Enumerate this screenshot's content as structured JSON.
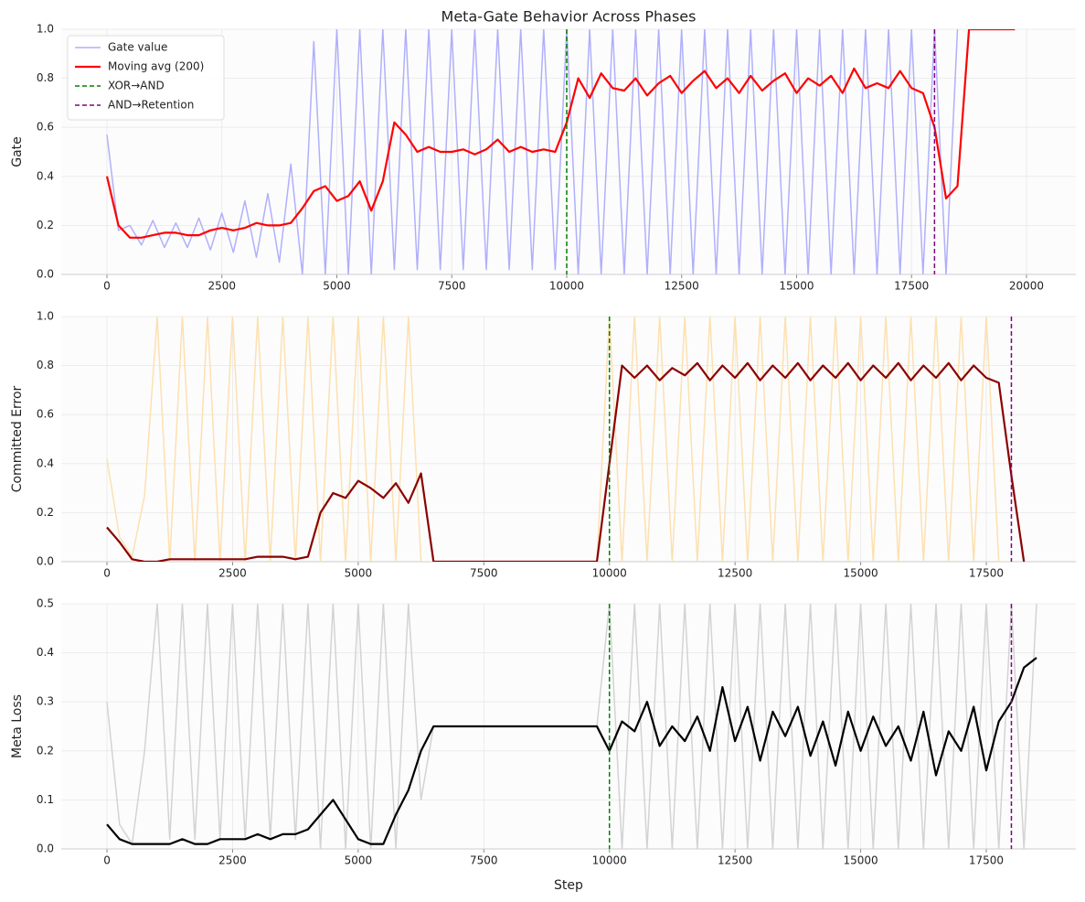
{
  "chart_data": [
    {
      "type": "line",
      "title": "Meta-Gate Behavior Across Phases",
      "ylabel": "Gate",
      "x": [
        0,
        250,
        500,
        750,
        1000,
        1250,
        1500,
        1750,
        2000,
        2250,
        2500,
        2750,
        3000,
        3250,
        3500,
        3750,
        4000,
        4250,
        4500,
        4750,
        5000,
        5250,
        5500,
        5750,
        6000,
        6250,
        6500,
        6750,
        7000,
        7250,
        7500,
        7750,
        8000,
        8250,
        8500,
        8750,
        9000,
        9250,
        9500,
        9750,
        10000,
        10250,
        10500,
        10750,
        11000,
        11250,
        11500,
        11750,
        12000,
        12250,
        12500,
        12750,
        13000,
        13250,
        13500,
        13750,
        14000,
        14250,
        14500,
        14750,
        15000,
        15250,
        15500,
        15750,
        16000,
        16250,
        16500,
        16750,
        17000,
        17250,
        17500,
        17750,
        18000,
        18250,
        18500,
        18750,
        19000,
        19250,
        19500,
        19750
      ],
      "series": [
        {
          "name": "Gate value",
          "color": "#b0b0fc",
          "values": [
            0.57,
            0.18,
            0.2,
            0.12,
            0.22,
            0.11,
            0.21,
            0.11,
            0.23,
            0.1,
            0.25,
            0.09,
            0.3,
            0.07,
            0.33,
            0.05,
            0.45,
            0,
            0.95,
            0,
            1,
            0,
            1,
            0,
            1,
            0.02,
            1,
            0.02,
            1,
            0.02,
            1,
            0.02,
            1,
            0.02,
            1,
            0.02,
            1,
            0.02,
            1,
            0.02,
            1,
            0,
            1,
            0,
            1,
            0,
            1,
            0,
            1,
            0,
            1,
            0,
            1,
            0,
            1,
            0,
            1,
            0,
            1,
            0,
            1,
            0,
            1,
            0,
            1,
            0,
            1,
            0,
            1,
            0,
            1,
            0,
            1,
            0,
            1,
            null,
            null,
            null,
            null,
            null
          ]
        },
        {
          "name": "Moving avg (200)",
          "color": "#ff0000",
          "values": [
            0.4,
            0.2,
            0.15,
            0.15,
            0.16,
            0.17,
            0.17,
            0.16,
            0.16,
            0.18,
            0.19,
            0.18,
            0.19,
            0.21,
            0.2,
            0.2,
            0.21,
            0.27,
            0.34,
            0.36,
            0.3,
            0.32,
            0.38,
            0.26,
            0.38,
            0.62,
            0.57,
            0.5,
            0.52,
            0.5,
            0.5,
            0.51,
            0.49,
            0.51,
            0.55,
            0.5,
            0.52,
            0.5,
            0.51,
            0.5,
            0.62,
            0.8,
            0.72,
            0.82,
            0.76,
            0.75,
            0.8,
            0.73,
            0.78,
            0.81,
            0.74,
            0.79,
            0.83,
            0.76,
            0.8,
            0.74,
            0.81,
            0.75,
            0.79,
            0.82,
            0.74,
            0.8,
            0.77,
            0.81,
            0.74,
            0.84,
            0.76,
            0.78,
            0.76,
            0.83,
            0.76,
            0.74,
            0.6,
            0.31,
            0.36,
            1,
            1,
            1,
            1,
            1
          ]
        }
      ],
      "vlines": [
        {
          "name": "XOR→AND",
          "x": 10000,
          "color": "#008000"
        },
        {
          "name": "AND→Retention",
          "x": 18000,
          "color": "#800080"
        }
      ],
      "legend": "upper left",
      "xlim": [
        -994,
        21074
      ],
      "xticks": [
        0,
        2500,
        5000,
        7500,
        10000,
        12500,
        15000,
        17500,
        20000
      ],
      "ylim": [
        0,
        1
      ],
      "yticks": [
        {
          "value": 0,
          "label": "0.0"
        },
        {
          "value": 0.2,
          "label": "0.2"
        },
        {
          "value": 0.4,
          "label": "0.4"
        },
        {
          "value": 0.6,
          "label": "0.6"
        },
        {
          "value": 0.8,
          "label": "0.8"
        },
        {
          "value": 1,
          "label": "1.0"
        }
      ],
      "grid": true
    },
    {
      "type": "line",
      "ylabel": "Committed Error",
      "x": [
        0,
        250,
        500,
        750,
        1000,
        1250,
        1500,
        1750,
        2000,
        2250,
        2500,
        2750,
        3000,
        3250,
        3500,
        3750,
        4000,
        4250,
        4500,
        4750,
        5000,
        5250,
        5500,
        5750,
        6000,
        6250,
        6500,
        6750,
        7000,
        7250,
        7500,
        7750,
        8000,
        8250,
        8500,
        8750,
        9000,
        9250,
        9500,
        9750,
        10000,
        10250,
        10500,
        10750,
        11000,
        11250,
        11500,
        11750,
        12000,
        12250,
        12500,
        12750,
        13000,
        13250,
        13500,
        13750,
        14000,
        14250,
        14500,
        14750,
        15000,
        15250,
        15500,
        15750,
        16000,
        16250,
        16500,
        16750,
        17000,
        17250,
        17500,
        17750,
        18000,
        18250,
        18500
      ],
      "series": [
        {
          "color": "#fde0b0",
          "values": [
            0.42,
            0.1,
            0.02,
            0.27,
            1,
            0,
            1,
            0,
            1,
            0,
            1,
            0,
            1,
            0,
            1,
            0,
            1,
            0,
            1,
            0,
            1,
            0,
            1,
            0,
            1,
            0,
            0,
            0,
            0,
            0,
            0,
            0,
            0,
            0,
            0,
            0,
            0,
            0,
            0,
            0,
            1,
            0,
            1,
            0,
            1,
            0,
            1,
            0,
            1,
            0,
            1,
            0,
            1,
            0,
            1,
            0,
            1,
            0,
            1,
            0,
            1,
            0,
            1,
            0,
            1,
            0,
            1,
            0,
            1,
            0,
            1,
            0,
            0,
            null,
            null
          ]
        },
        {
          "color": "#8b0000",
          "values": [
            0.14,
            0.08,
            0.01,
            0,
            0,
            0.01,
            0.01,
            0.01,
            0.01,
            0.01,
            0.01,
            0.01,
            0.02,
            0.02,
            0.02,
            0.01,
            0.02,
            0.2,
            0.28,
            0.26,
            0.33,
            0.3,
            0.26,
            0.32,
            0.24,
            0.36,
            0,
            0,
            0,
            0,
            0,
            0,
            0,
            0,
            0,
            0,
            0,
            0,
            0,
            0,
            0.4,
            0.8,
            0.75,
            0.8,
            0.74,
            0.79,
            0.76,
            0.81,
            0.74,
            0.8,
            0.75,
            0.81,
            0.74,
            0.8,
            0.75,
            0.81,
            0.74,
            0.8,
            0.75,
            0.81,
            0.74,
            0.8,
            0.75,
            0.81,
            0.74,
            0.8,
            0.75,
            0.81,
            0.74,
            0.8,
            0.75,
            0.73,
            0.35,
            0,
            null
          ]
        }
      ],
      "vlines": [
        {
          "x": 10000,
          "color": "#008000"
        },
        {
          "x": 18000,
          "color": "#800080"
        }
      ],
      "xlim": [
        -910,
        19283
      ],
      "xticks": [
        0,
        2500,
        5000,
        7500,
        10000,
        12500,
        15000,
        17500
      ],
      "ylim": [
        0,
        1
      ],
      "yticks": [
        {
          "value": 0,
          "label": "0.0"
        },
        {
          "value": 0.2,
          "label": "0.2"
        },
        {
          "value": 0.4,
          "label": "0.4"
        },
        {
          "value": 0.6,
          "label": "0.6"
        },
        {
          "value": 0.8,
          "label": "0.8"
        },
        {
          "value": 1,
          "label": "1.0"
        }
      ],
      "grid": true
    },
    {
      "type": "line",
      "ylabel": "Meta Loss",
      "xlabel": "Step",
      "x": [
        0,
        250,
        500,
        750,
        1000,
        1250,
        1500,
        1750,
        2000,
        2250,
        2500,
        2750,
        3000,
        3250,
        3500,
        3750,
        4000,
        4250,
        4500,
        4750,
        5000,
        5250,
        5500,
        5750,
        6000,
        6250,
        6500,
        6750,
        7000,
        7250,
        7500,
        7750,
        8000,
        8250,
        8500,
        8750,
        9000,
        9250,
        9500,
        9750,
        10000,
        10250,
        10500,
        10750,
        11000,
        11250,
        11500,
        11750,
        12000,
        12250,
        12500,
        12750,
        13000,
        13250,
        13500,
        13750,
        14000,
        14250,
        14500,
        14750,
        15000,
        15250,
        15500,
        15750,
        16000,
        16250,
        16500,
        16750,
        17000,
        17250,
        17500,
        17750,
        18000,
        18250,
        18500
      ],
      "series": [
        {
          "color": "#d3d3d3",
          "values": [
            0.3,
            0.05,
            0.01,
            0.2,
            0.5,
            0.02,
            0.5,
            0.02,
            0.5,
            0.02,
            0.5,
            0.02,
            0.5,
            0.02,
            0.5,
            0.02,
            0.5,
            0,
            0.5,
            0,
            0.5,
            0,
            0.5,
            0,
            0.5,
            0.1,
            0.25,
            0.25,
            0.25,
            0.25,
            0.25,
            0.25,
            0.25,
            0.25,
            0.25,
            0.25,
            0.25,
            0.25,
            0.25,
            0.25,
            0.5,
            0,
            0.5,
            0,
            0.5,
            0,
            0.5,
            0,
            0.5,
            0,
            0.5,
            0,
            0.5,
            0,
            0.5,
            0,
            0.5,
            0,
            0.5,
            0,
            0.5,
            0,
            0.5,
            0,
            0.5,
            0,
            0.5,
            0,
            0.5,
            0,
            0.5,
            0,
            0.5,
            0,
            0.5
          ]
        },
        {
          "color": "#000000",
          "values": [
            0.05,
            0.02,
            0.01,
            0.01,
            0.01,
            0.01,
            0.02,
            0.01,
            0.01,
            0.02,
            0.02,
            0.02,
            0.03,
            0.02,
            0.03,
            0.03,
            0.04,
            0.07,
            0.1,
            0.06,
            0.02,
            0.01,
            0.01,
            0.07,
            0.12,
            0.2,
            0.25,
            0.25,
            0.25,
            0.25,
            0.25,
            0.25,
            0.25,
            0.25,
            0.25,
            0.25,
            0.25,
            0.25,
            0.25,
            0.25,
            0.2,
            0.26,
            0.24,
            0.3,
            0.21,
            0.25,
            0.22,
            0.27,
            0.2,
            0.33,
            0.22,
            0.29,
            0.18,
            0.28,
            0.23,
            0.29,
            0.19,
            0.26,
            0.17,
            0.28,
            0.2,
            0.27,
            0.21,
            0.25,
            0.18,
            0.28,
            0.15,
            0.24,
            0.2,
            0.29,
            0.16,
            0.26,
            0.3,
            0.37,
            0.39
          ]
        }
      ],
      "vlines": [
        {
          "x": 10000,
          "color": "#008000"
        },
        {
          "x": 18000,
          "color": "#800080"
        }
      ],
      "xlim": [
        -910,
        19283
      ],
      "xticks": [
        0,
        2500,
        5000,
        7500,
        10000,
        12500,
        15000,
        17500
      ],
      "ylim": [
        0,
        0.5
      ],
      "yticks": [
        {
          "value": 0,
          "label": "0.0"
        },
        {
          "value": 0.1,
          "label": "0.1"
        },
        {
          "value": 0.2,
          "label": "0.2"
        },
        {
          "value": 0.3,
          "label": "0.3"
        },
        {
          "value": 0.4,
          "label": "0.4"
        },
        {
          "value": 0.5,
          "label": "0.5"
        }
      ],
      "grid": true
    }
  ]
}
